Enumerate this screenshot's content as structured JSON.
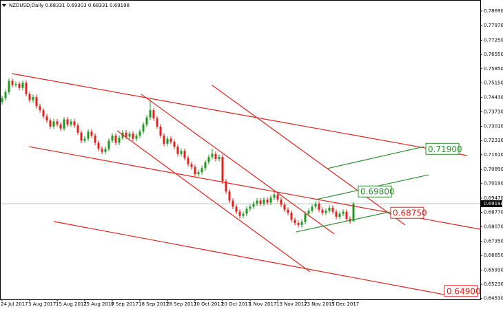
{
  "chart_data": {
    "type": "candlestick",
    "title": "NZDUSD,Daily  0.68331 0.69303 0.68331 0.69198",
    "up_color": "#1f9a1f",
    "down_color": "#e3201b",
    "grid": false,
    "ylim": [
      0.64486,
      0.79232
    ],
    "yticks": [
      {
        "value": 0.7869,
        "label": "0.78690"
      },
      {
        "value": 0.7797,
        "label": "0.77970"
      },
      {
        "value": 0.7725,
        "label": "0.77250"
      },
      {
        "value": 0.7655,
        "label": "0.76550"
      },
      {
        "value": 0.7585,
        "label": "0.75850"
      },
      {
        "value": 0.7515,
        "label": "0.75150"
      },
      {
        "value": 0.7443,
        "label": "0.74430"
      },
      {
        "value": 0.7373,
        "label": "0.73730"
      },
      {
        "value": 0.7301,
        "label": "0.73010"
      },
      {
        "value": 0.7231,
        "label": "0.72310"
      },
      {
        "value": 0.7161,
        "label": "0.71610"
      },
      {
        "value": 0.7089,
        "label": "0.70890"
      },
      {
        "value": 0.7019,
        "label": "0.70190"
      },
      {
        "value": 0.6947,
        "label": "0.69470"
      },
      {
        "value": 0.6877,
        "label": "0.68770"
      },
      {
        "value": 0.6807,
        "label": "0.68070"
      },
      {
        "value": 0.6735,
        "label": "0.67350"
      },
      {
        "value": 0.6665,
        "label": "0.66650"
      },
      {
        "value": 0.6593,
        "label": "0.65930"
      },
      {
        "value": 0.6523,
        "label": "0.65230"
      },
      {
        "value": 0.6453,
        "label": "0.64530"
      }
    ],
    "current_price": {
      "value": 0.69198,
      "label": "0.69198",
      "color": "#c0c0c0"
    },
    "categories": [
      "24 Jul 2017",
      null,
      null,
      null,
      null,
      null,
      null,
      null,
      "3 Aug 2017",
      null,
      null,
      null,
      null,
      null,
      null,
      null,
      "15 Aug 2017",
      null,
      null,
      null,
      null,
      null,
      null,
      null,
      "25 Aug 2017",
      null,
      null,
      null,
      null,
      null,
      null,
      null,
      "6 Sep 2017",
      null,
      null,
      null,
      null,
      null,
      null,
      null,
      "18 Sep 2017",
      null,
      null,
      null,
      null,
      null,
      null,
      null,
      "28 Sep 2017",
      null,
      null,
      null,
      null,
      null,
      null,
      null,
      "10 Oct 2017",
      null,
      null,
      null,
      null,
      null,
      null,
      null,
      "20 Oct 2017",
      null,
      null,
      null,
      null,
      null,
      null,
      null,
      "1 Nov 2017",
      null,
      null,
      null,
      null,
      null,
      null,
      null,
      "13 Nov 2017",
      null,
      null,
      null,
      null,
      null,
      null,
      null,
      "23 Nov 2017",
      null,
      null,
      null,
      null,
      null,
      null,
      null,
      "5 Dec 2017",
      null,
      null,
      null,
      null,
      null,
      null
    ],
    "ohlc": [
      [
        0.742,
        0.7452,
        0.7408,
        0.744
      ],
      [
        0.744,
        0.7482,
        0.7428,
        0.747
      ],
      [
        0.747,
        0.7537,
        0.7458,
        0.7525
      ],
      [
        0.7525,
        0.7537,
        0.7493,
        0.7505
      ],
      [
        0.7505,
        0.7522,
        0.7493,
        0.751
      ],
      [
        0.751,
        0.7522,
        0.7478,
        0.749
      ],
      [
        0.749,
        0.7527,
        0.7478,
        0.7515
      ],
      [
        0.7515,
        0.7527,
        0.7448,
        0.746
      ],
      [
        0.746,
        0.7472,
        0.7418,
        0.743
      ],
      [
        0.743,
        0.7457,
        0.7418,
        0.7445
      ],
      [
        0.7445,
        0.7457,
        0.7388,
        0.74
      ],
      [
        0.74,
        0.7412,
        0.7368,
        0.738
      ],
      [
        0.738,
        0.7392,
        0.7338,
        0.735
      ],
      [
        0.735,
        0.7362,
        0.7318,
        0.733
      ],
      [
        0.733,
        0.7342,
        0.7288,
        0.73
      ],
      [
        0.73,
        0.7337,
        0.7288,
        0.7325
      ],
      [
        0.7325,
        0.7337,
        0.7298,
        0.731
      ],
      [
        0.731,
        0.7322,
        0.7278,
        0.729
      ],
      [
        0.729,
        0.7347,
        0.7278,
        0.7335
      ],
      [
        0.7335,
        0.7347,
        0.7298,
        0.731
      ],
      [
        0.731,
        0.7337,
        0.7298,
        0.7325
      ],
      [
        0.7325,
        0.7337,
        0.7293,
        0.7305
      ],
      [
        0.7305,
        0.7317,
        0.7258,
        0.727
      ],
      [
        0.727,
        0.7282,
        0.7218,
        0.723
      ],
      [
        0.723,
        0.7252,
        0.7218,
        0.724
      ],
      [
        0.724,
        0.7287,
        0.7228,
        0.7275
      ],
      [
        0.7275,
        0.7287,
        0.7243,
        0.7255
      ],
      [
        0.7255,
        0.7267,
        0.7208,
        0.722
      ],
      [
        0.722,
        0.7232,
        0.7178,
        0.719
      ],
      [
        0.719,
        0.7202,
        0.7163,
        0.7175
      ],
      [
        0.7175,
        0.7202,
        0.7163,
        0.719
      ],
      [
        0.719,
        0.7242,
        0.7178,
        0.723
      ],
      [
        0.723,
        0.7267,
        0.7218,
        0.7255
      ],
      [
        0.7255,
        0.7267,
        0.7208,
        0.722
      ],
      [
        0.722,
        0.7257,
        0.7208,
        0.7245
      ],
      [
        0.7245,
        0.7282,
        0.7233,
        0.727
      ],
      [
        0.727,
        0.7282,
        0.7238,
        0.725
      ],
      [
        0.725,
        0.7277,
        0.7238,
        0.7265
      ],
      [
        0.7265,
        0.7277,
        0.7228,
        0.724
      ],
      [
        0.724,
        0.7267,
        0.7228,
        0.7255
      ],
      [
        0.7255,
        0.7287,
        0.7243,
        0.7275
      ],
      [
        0.7275,
        0.7322,
        0.7263,
        0.731
      ],
      [
        0.731,
        0.7357,
        0.7298,
        0.7345
      ],
      [
        0.7345,
        0.7435,
        0.7333,
        0.738
      ],
      [
        0.738,
        0.7392,
        0.7328,
        0.734
      ],
      [
        0.734,
        0.7352,
        0.7288,
        0.73
      ],
      [
        0.73,
        0.7312,
        0.7243,
        0.7255
      ],
      [
        0.7255,
        0.7267,
        0.7203,
        0.7215
      ],
      [
        0.7215,
        0.7252,
        0.7203,
        0.724
      ],
      [
        0.724,
        0.7252,
        0.7213,
        0.7225
      ],
      [
        0.7225,
        0.7237,
        0.7188,
        0.72
      ],
      [
        0.72,
        0.7212,
        0.7153,
        0.7165
      ],
      [
        0.7165,
        0.7192,
        0.7153,
        0.718
      ],
      [
        0.718,
        0.7192,
        0.7133,
        0.7145
      ],
      [
        0.7145,
        0.7157,
        0.7103,
        0.7115
      ],
      [
        0.7115,
        0.7127,
        0.7088,
        0.71
      ],
      [
        0.71,
        0.7112,
        0.7053,
        0.7065
      ],
      [
        0.7065,
        0.7087,
        0.7053,
        0.7075
      ],
      [
        0.7075,
        0.7107,
        0.7063,
        0.7095
      ],
      [
        0.7095,
        0.7137,
        0.7083,
        0.7125
      ],
      [
        0.7125,
        0.7162,
        0.7113,
        0.715
      ],
      [
        0.715,
        0.719,
        0.7138,
        0.7165
      ],
      [
        0.7165,
        0.7177,
        0.7128,
        0.714
      ],
      [
        0.714,
        0.7162,
        0.7128,
        0.715
      ],
      [
        0.715,
        0.7162,
        0.7018,
        0.703
      ],
      [
        0.703,
        0.7042,
        0.6968,
        0.698
      ],
      [
        0.698,
        0.6992,
        0.6923,
        0.6935
      ],
      [
        0.6935,
        0.6947,
        0.6893,
        0.6905
      ],
      [
        0.6905,
        0.6917,
        0.6868,
        0.688
      ],
      [
        0.688,
        0.6892,
        0.6848,
        0.686
      ],
      [
        0.686,
        0.6882,
        0.6848,
        0.687
      ],
      [
        0.687,
        0.6907,
        0.6858,
        0.6895
      ],
      [
        0.6895,
        0.6917,
        0.6883,
        0.6905
      ],
      [
        0.6905,
        0.6932,
        0.6893,
        0.692
      ],
      [
        0.692,
        0.6947,
        0.6908,
        0.6935
      ],
      [
        0.6935,
        0.6947,
        0.6908,
        0.692
      ],
      [
        0.692,
        0.6952,
        0.6908,
        0.694
      ],
      [
        0.694,
        0.6952,
        0.6913,
        0.6925
      ],
      [
        0.6925,
        0.6962,
        0.6913,
        0.695
      ],
      [
        0.695,
        0.6977,
        0.6938,
        0.6965
      ],
      [
        0.6965,
        0.6977,
        0.6928,
        0.694
      ],
      [
        0.694,
        0.6952,
        0.6903,
        0.6915
      ],
      [
        0.6915,
        0.6927,
        0.6878,
        0.689
      ],
      [
        0.689,
        0.6902,
        0.6863,
        0.6875
      ],
      [
        0.6875,
        0.6887,
        0.6828,
        0.684
      ],
      [
        0.684,
        0.6852,
        0.6813,
        0.6825
      ],
      [
        0.6825,
        0.6837,
        0.6803,
        0.6815
      ],
      [
        0.6815,
        0.6842,
        0.6803,
        0.683
      ],
      [
        0.683,
        0.6882,
        0.6818,
        0.687
      ],
      [
        0.687,
        0.6897,
        0.6858,
        0.6885
      ],
      [
        0.6885,
        0.6917,
        0.6873,
        0.6905
      ],
      [
        0.6905,
        0.6932,
        0.6893,
        0.692
      ],
      [
        0.692,
        0.6932,
        0.6878,
        0.689
      ],
      [
        0.689,
        0.6902,
        0.6863,
        0.6875
      ],
      [
        0.6875,
        0.6897,
        0.6863,
        0.6885
      ],
      [
        0.6885,
        0.6912,
        0.6873,
        0.69
      ],
      [
        0.69,
        0.6912,
        0.6868,
        0.688
      ],
      [
        0.688,
        0.6892,
        0.6843,
        0.6855
      ],
      [
        0.6855,
        0.6882,
        0.6843,
        0.687
      ],
      [
        0.687,
        0.6892,
        0.6858,
        0.688
      ],
      [
        0.688,
        0.6892,
        0.6833,
        0.6845
      ],
      [
        0.6845,
        0.6857,
        0.6821,
        0.68331
      ],
      [
        0.68331,
        0.69303,
        0.68331,
        0.69198
      ]
    ],
    "trendlines": [
      {
        "color": "#e3201b",
        "x": [
          2.8,
          135
        ],
        "y": [
          0.7561,
          0.7157
        ]
      },
      {
        "color": "#e3201b",
        "x": [
          7.8,
          138.8
        ],
        "y": [
          0.7201,
          0.6794
        ]
      },
      {
        "color": "#e3201b",
        "x": [
          15,
          128.4
        ],
        "y": [
          0.6832,
          0.6472
        ]
      },
      {
        "color": "#e3201b",
        "x": [
          40.4,
          96.4
        ],
        "y": [
          0.7459,
          0.6771
        ]
      },
      {
        "color": "#e3201b",
        "x": [
          33.4,
          89.4
        ],
        "y": [
          0.7279,
          0.6584
        ]
      },
      {
        "color": "#e3201b",
        "x": [
          61,
          117
        ],
        "y": [
          0.7503,
          0.6815
        ]
      },
      {
        "color": "#2a8f2a",
        "x": [
          94.4,
          122.4
        ],
        "y": [
          0.7093,
          0.7201
        ]
      },
      {
        "color": "#2a8f2a",
        "x": [
          91,
          123.8
        ],
        "y": [
          0.694,
          0.7062
        ]
      },
      {
        "color": "#2a8f2a",
        "x": [
          85.4,
          112.4
        ],
        "y": [
          0.6781,
          0.6879
        ]
      }
    ],
    "price_labels": [
      {
        "value": 0.719,
        "label": "0.71900",
        "x": 123,
        "color": "#2a8f2a"
      },
      {
        "value": 0.698,
        "label": "0.69800",
        "x": 103.4,
        "color": "#2a8f2a"
      },
      {
        "value": 0.6875,
        "label": "0.68750",
        "x": 112.8,
        "color": "#e3201b"
      },
      {
        "value": 0.649,
        "label": "0.64900",
        "x": 128.4,
        "color": "#e3201b"
      }
    ]
  }
}
